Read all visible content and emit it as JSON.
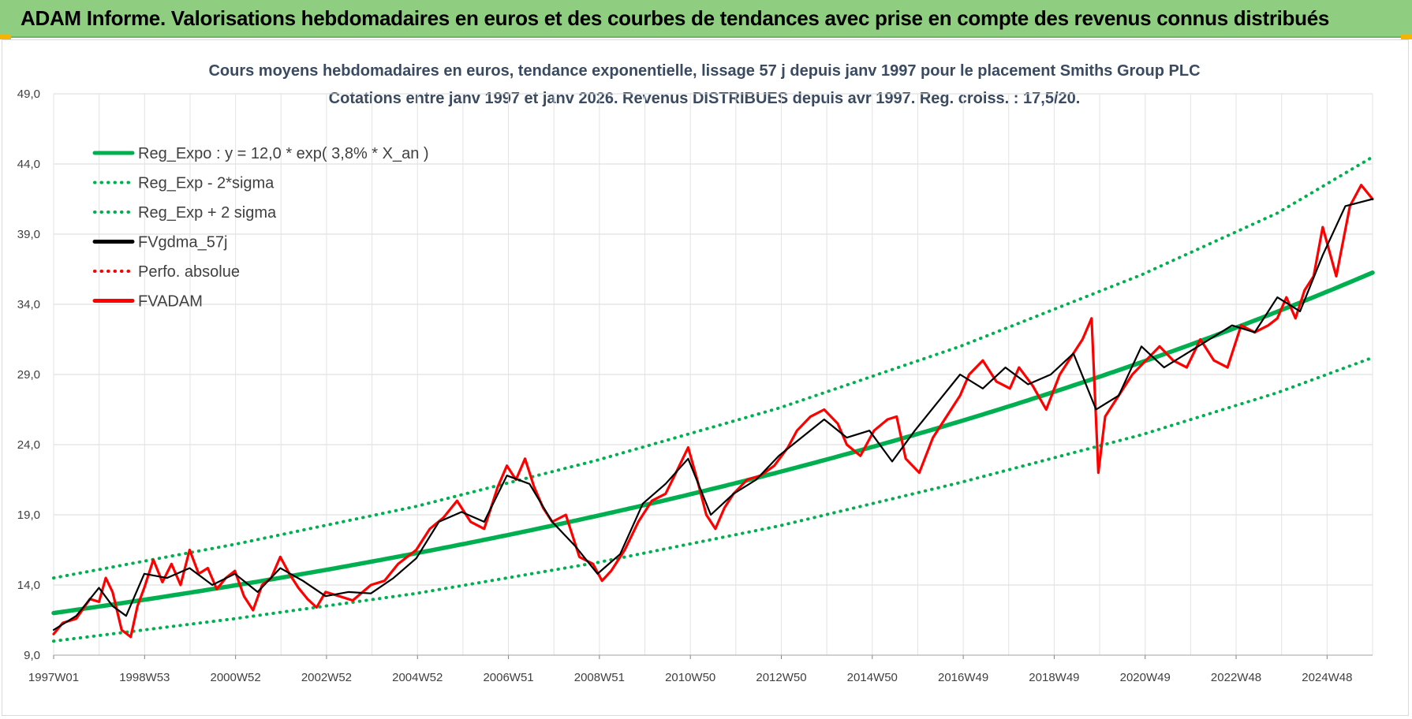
{
  "banner": {
    "title": "ADAM Informe. Valorisations hebdomadaires en euros et des courbes de tendances avec prise en compte des revenus connus distribués",
    "color": "#8fce80"
  },
  "chart_data": {
    "type": "line",
    "title": "Cours moyens hebdomadaires en euros, tendance exponentielle, lissage 57 j depuis janv 1997 pour le placement Smiths Group PLC",
    "subtitle": "Cotations entre janv 1997 et janv 2026. Revenus DISTRIBUES depuis avr 1997. Reg. croiss. : 17,5/20.",
    "xlabel": "",
    "ylabel": "",
    "ylim": [
      9.0,
      49.0
    ],
    "y_ticks": [
      "9,0",
      "14,0",
      "19,0",
      "24,0",
      "29,0",
      "34,0",
      "39,0",
      "44,0",
      "49,0"
    ],
    "x_ticks": [
      "1997W01",
      "1998W53",
      "2000W52",
      "2002W52",
      "2004W52",
      "2006W51",
      "2008W51",
      "2010W50",
      "2012W50",
      "2014W50",
      "2016W49",
      "2018W49",
      "2020W49",
      "2022W48",
      "2024W48"
    ],
    "xlim": [
      1997.0,
      2026.1
    ],
    "grid": true,
    "legend_position": "top-left",
    "series": [
      {
        "name": "Reg_Expo : y = 12,0 * exp( 3,8% *  X_an )",
        "color": "#00b050",
        "style": "solid",
        "formula": {
          "a": 12.0,
          "b": 0.038
        },
        "x": [
          1997,
          1999,
          2001,
          2003,
          2005,
          2007,
          2009,
          2011,
          2013,
          2015,
          2017,
          2019,
          2021,
          2023,
          2025,
          2026.1
        ],
        "values": [
          12.0,
          12.95,
          13.98,
          15.08,
          16.27,
          17.56,
          18.95,
          20.45,
          22.06,
          23.8,
          25.69,
          27.72,
          29.91,
          32.27,
          34.82,
          36.3
        ]
      },
      {
        "name": "Reg_Exp - 2*sigma",
        "color": "#00b050",
        "style": "dotted",
        "x": [
          1997,
          2001,
          2005,
          2009,
          2013,
          2017,
          2021,
          2024,
          2026.1
        ],
        "values": [
          10.0,
          11.6,
          13.4,
          15.6,
          18.2,
          21.3,
          24.7,
          27.7,
          30.2
        ]
      },
      {
        "name": "Reg_Exp + 2 sigma",
        "color": "#00b050",
        "style": "dotted",
        "x": [
          1997,
          2001,
          2005,
          2009,
          2013,
          2017,
          2021,
          2024,
          2026.1
        ],
        "values": [
          14.5,
          16.9,
          19.6,
          22.9,
          26.6,
          31.0,
          36.1,
          40.5,
          44.5
        ]
      },
      {
        "name": "FVgdma_57j",
        "color": "#000000",
        "style": "solid",
        "x": [
          1997,
          1997.5,
          1998,
          1998.3,
          1998.6,
          1999,
          1999.5,
          2000,
          2000.5,
          2001,
          2001.5,
          2002,
          2002.5,
          2003,
          2003.5,
          2004,
          2004.5,
          2005,
          2005.5,
          2006,
          2006.5,
          2007,
          2007.5,
          2008,
          2008.5,
          2009,
          2009.5,
          2010,
          2010.5,
          2011,
          2011.5,
          2012,
          2012.5,
          2013,
          2013.5,
          2014,
          2014.5,
          2015,
          2015.5,
          2016,
          2016.5,
          2017,
          2017.5,
          2018,
          2018.5,
          2019,
          2019.5,
          2020,
          2020.5,
          2021,
          2021.5,
          2022,
          2022.5,
          2023,
          2023.5,
          2024,
          2024.5,
          2025,
          2025.5,
          2026.1
        ],
        "values": [
          10.8,
          11.8,
          13.8,
          12.5,
          11.8,
          14.8,
          14.5,
          15.2,
          14.0,
          14.8,
          13.5,
          15.2,
          14.3,
          13.2,
          13.5,
          13.4,
          14.5,
          15.9,
          18.5,
          19.2,
          18.5,
          21.8,
          21.2,
          18.5,
          16.8,
          14.8,
          16.2,
          19.8,
          21.2,
          23.0,
          19.0,
          20.5,
          21.5,
          23.2,
          24.5,
          25.8,
          24.5,
          25.0,
          22.8,
          25.0,
          27.0,
          29.0,
          28.0,
          29.5,
          28.3,
          29.0,
          30.5,
          26.5,
          27.5,
          31.0,
          29.5,
          30.5,
          31.5,
          32.5,
          32.0,
          34.5,
          33.5,
          37.5,
          41.0,
          41.5
        ]
      },
      {
        "name": "Perfo. absolue",
        "color": "#ff0000",
        "style": "dotted",
        "x": [],
        "values": []
      },
      {
        "name": "FVADAM",
        "color": "#ff0000",
        "style": "solid",
        "x": [
          1997,
          1997.2,
          1997.5,
          1997.8,
          1998,
          1998.15,
          1998.3,
          1998.5,
          1998.7,
          1998.85,
          1999,
          1999.2,
          1999.4,
          1999.6,
          1999.8,
          2000,
          2000.2,
          2000.4,
          2000.6,
          2000.8,
          2001,
          2001.2,
          2001.4,
          2001.6,
          2001.8,
          2002,
          2002.2,
          2002.4,
          2002.6,
          2002.8,
          2003,
          2003.3,
          2003.6,
          2004,
          2004.3,
          2004.6,
          2005,
          2005.3,
          2005.6,
          2005.9,
          2006.2,
          2006.5,
          2006.8,
          2007,
          2007.2,
          2007.4,
          2007.6,
          2007.8,
          2008,
          2008.3,
          2008.6,
          2008.9,
          2009.1,
          2009.3,
          2009.6,
          2009.9,
          2010.2,
          2010.5,
          2010.7,
          2011,
          2011.2,
          2011.4,
          2011.6,
          2011.8,
          2012,
          2012.3,
          2012.6,
          2012.9,
          2013.2,
          2013.4,
          2013.7,
          2014,
          2014.3,
          2014.5,
          2014.8,
          2015.1,
          2015.4,
          2015.6,
          2015.8,
          2016.1,
          2016.4,
          2016.7,
          2017,
          2017.2,
          2017.5,
          2017.8,
          2018.1,
          2018.3,
          2018.6,
          2018.9,
          2019.2,
          2019.5,
          2019.7,
          2019.9,
          2020.05,
          2020.2,
          2020.5,
          2020.8,
          2021.1,
          2021.4,
          2021.7,
          2022,
          2022.3,
          2022.6,
          2022.9,
          2023.2,
          2023.5,
          2023.8,
          2024,
          2024.2,
          2024.4,
          2024.6,
          2024.8,
          2025.0,
          2025.3,
          2025.6,
          2025.85,
          2026.1
        ],
        "values": [
          10.5,
          11.3,
          11.6,
          13.0,
          12.8,
          14.5,
          13.5,
          10.8,
          10.3,
          12.5,
          13.8,
          15.8,
          14.2,
          15.5,
          14.0,
          16.5,
          14.8,
          15.2,
          13.7,
          14.5,
          15.0,
          13.2,
          12.2,
          14.0,
          14.5,
          16.0,
          14.8,
          13.8,
          13.0,
          12.4,
          13.5,
          13.2,
          12.9,
          14.0,
          14.3,
          15.5,
          16.5,
          18.0,
          18.8,
          20.0,
          18.5,
          18.0,
          21.0,
          22.5,
          21.5,
          23.0,
          21.0,
          19.5,
          18.5,
          19.0,
          16.0,
          15.5,
          14.3,
          15.0,
          16.5,
          18.5,
          20.0,
          20.5,
          21.8,
          23.8,
          21.5,
          19.0,
          18.0,
          19.5,
          20.5,
          21.5,
          21.8,
          22.5,
          23.8,
          25.0,
          26.0,
          26.5,
          25.5,
          24.0,
          23.2,
          25.0,
          25.8,
          26.0,
          23.0,
          22.0,
          24.5,
          26.0,
          27.5,
          29.0,
          30.0,
          28.5,
          28.0,
          29.5,
          28.2,
          26.5,
          29.0,
          30.5,
          31.5,
          33.0,
          22.0,
          26.0,
          27.5,
          29.0,
          30.0,
          31.0,
          30.0,
          29.5,
          31.5,
          30.0,
          29.5,
          32.5,
          32.0,
          32.5,
          33.0,
          34.5,
          33.0,
          35.0,
          36.0,
          39.5,
          36.0,
          41.0,
          42.5,
          41.5
        ]
      }
    ]
  }
}
